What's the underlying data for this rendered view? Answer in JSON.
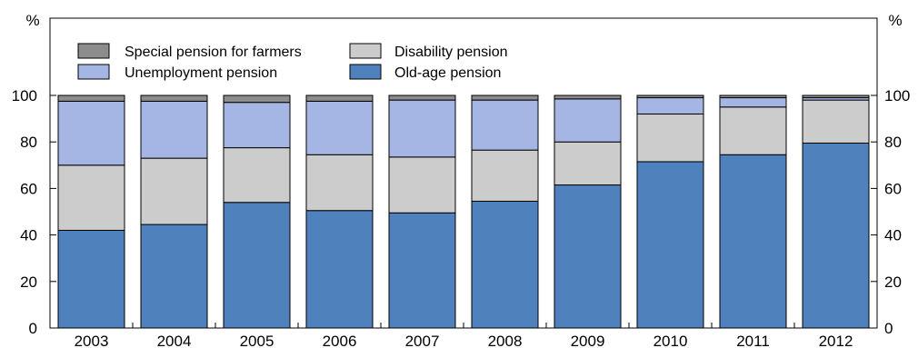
{
  "chart_data": {
    "type": "bar",
    "stacked": true,
    "categories": [
      "2003",
      "2004",
      "2005",
      "2006",
      "2007",
      "2008",
      "2009",
      "2010",
      "2011",
      "2012"
    ],
    "series": [
      {
        "name": "Old-age pension",
        "color": "#4f81bd",
        "values": [
          42,
          44.5,
          54,
          50.5,
          49.5,
          54.5,
          61.5,
          71.5,
          74.5,
          79.5
        ]
      },
      {
        "name": "Disability pension",
        "color": "#cccccc",
        "values": [
          28,
          28.5,
          23.5,
          24,
          24,
          22,
          18.5,
          20.5,
          20.5,
          18.5
        ]
      },
      {
        "name": "Unemployment pension",
        "color": "#a6b6e4",
        "values": [
          27.5,
          24.5,
          19.5,
          23,
          24.5,
          21.5,
          18.5,
          7,
          4,
          1
        ]
      },
      {
        "name": "Special pension for farmers",
        "color": "#8c8c8c",
        "values": [
          2.5,
          2.5,
          3,
          2.5,
          2,
          2,
          1.5,
          1,
          1,
          1
        ]
      }
    ],
    "ylim": [
      0,
      100
    ],
    "yticks": [
      "0",
      "20",
      "40",
      "60",
      "80",
      "100"
    ],
    "ylabel_left": "%",
    "ylabel_right": "%",
    "legend": {
      "placement": "top-left",
      "items": [
        {
          "label": "Special pension for farmers",
          "color": "#8c8c8c"
        },
        {
          "label": "Disability pension",
          "color": "#cccccc"
        },
        {
          "label": "Unemployment pension",
          "color": "#a6b6e4"
        },
        {
          "label": "Old-age pension",
          "color": "#4f81bd"
        }
      ]
    }
  }
}
